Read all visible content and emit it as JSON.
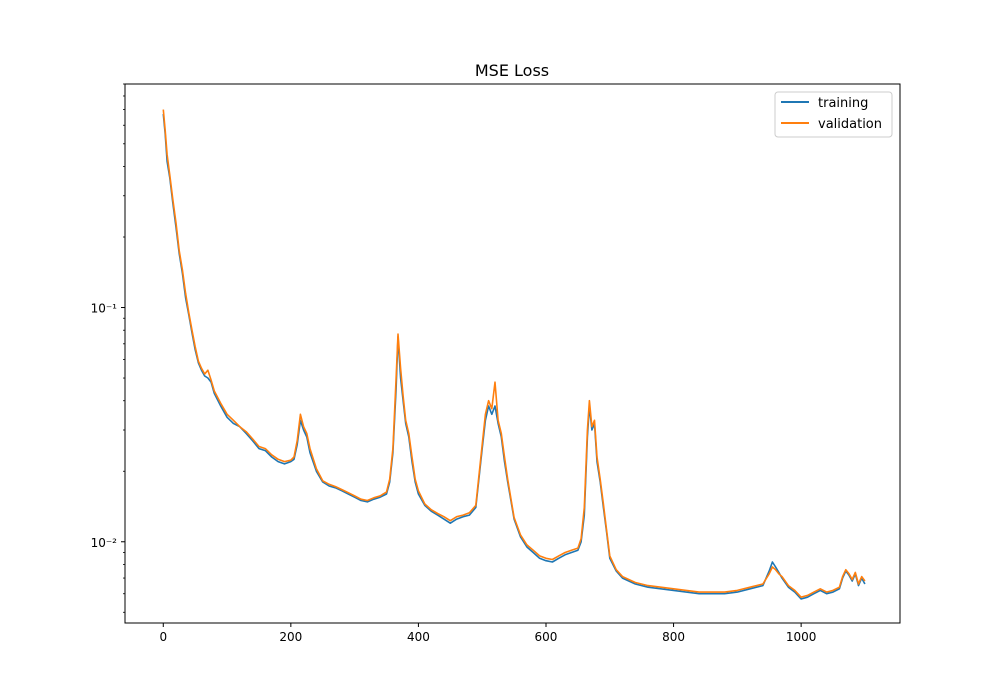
{
  "chart_data": {
    "type": "line",
    "title": "MSE Loss",
    "xlabel": "",
    "ylabel": "",
    "xlim": [
      -60,
      1155
    ],
    "ylim": [
      0.0045,
      0.9
    ],
    "yscale": "log",
    "grid": false,
    "legend_placement": "top-right",
    "x_ticks": [
      0,
      200,
      400,
      600,
      800,
      1000
    ],
    "x_tick_labels": [
      "0",
      "200",
      "400",
      "600",
      "800",
      "1000"
    ],
    "y_ticks": [
      0.01,
      0.1
    ],
    "y_tick_labels": [
      "10⁻²",
      "10⁻¹"
    ],
    "x": [
      0,
      3,
      6,
      10,
      15,
      20,
      25,
      30,
      35,
      40,
      45,
      50,
      55,
      60,
      65,
      70,
      75,
      80,
      90,
      100,
      110,
      120,
      130,
      140,
      150,
      160,
      170,
      180,
      190,
      200,
      205,
      210,
      215,
      220,
      225,
      230,
      240,
      250,
      260,
      270,
      280,
      290,
      300,
      310,
      320,
      330,
      340,
      350,
      355,
      360,
      365,
      368,
      372,
      376,
      380,
      385,
      390,
      395,
      400,
      410,
      420,
      430,
      440,
      450,
      460,
      470,
      480,
      490,
      500,
      505,
      510,
      515,
      520,
      525,
      530,
      535,
      540,
      545,
      550,
      560,
      570,
      580,
      590,
      600,
      610,
      620,
      630,
      640,
      650,
      655,
      660,
      665,
      668,
      672,
      676,
      680,
      685,
      690,
      695,
      700,
      710,
      720,
      740,
      760,
      780,
      800,
      820,
      840,
      860,
      880,
      900,
      920,
      940,
      950,
      955,
      960,
      965,
      970,
      980,
      990,
      1000,
      1010,
      1020,
      1030,
      1040,
      1050,
      1060,
      1065,
      1070,
      1075,
      1080,
      1085,
      1090,
      1095,
      1100
    ],
    "series": [
      {
        "name": "training",
        "color": "#1f77b4",
        "values": [
          0.67,
          0.55,
          0.42,
          0.36,
          0.28,
          0.22,
          0.17,
          0.14,
          0.11,
          0.093,
          0.078,
          0.066,
          0.058,
          0.054,
          0.051,
          0.05,
          0.048,
          0.043,
          0.038,
          0.034,
          0.032,
          0.031,
          0.029,
          0.027,
          0.025,
          0.0245,
          0.023,
          0.022,
          0.0215,
          0.022,
          0.0225,
          0.026,
          0.033,
          0.03,
          0.028,
          0.024,
          0.02,
          0.018,
          0.0173,
          0.017,
          0.0165,
          0.016,
          0.0155,
          0.015,
          0.0148,
          0.0152,
          0.0155,
          0.016,
          0.018,
          0.024,
          0.045,
          0.075,
          0.05,
          0.04,
          0.032,
          0.028,
          0.022,
          0.018,
          0.016,
          0.0143,
          0.0135,
          0.013,
          0.0125,
          0.012,
          0.0125,
          0.0128,
          0.013,
          0.014,
          0.025,
          0.033,
          0.038,
          0.035,
          0.038,
          0.032,
          0.028,
          0.022,
          0.018,
          0.015,
          0.0125,
          0.0105,
          0.0095,
          0.009,
          0.0085,
          0.0083,
          0.0082,
          0.0085,
          0.0088,
          0.009,
          0.0092,
          0.01,
          0.013,
          0.028,
          0.038,
          0.03,
          0.032,
          0.022,
          0.018,
          0.014,
          0.011,
          0.0085,
          0.0075,
          0.007,
          0.0066,
          0.0064,
          0.0063,
          0.0062,
          0.0061,
          0.006,
          0.006,
          0.006,
          0.0061,
          0.0063,
          0.0065,
          0.0075,
          0.0082,
          0.0078,
          0.0074,
          0.007,
          0.0064,
          0.0061,
          0.0057,
          0.0058,
          0.006,
          0.0062,
          0.006,
          0.0061,
          0.0063,
          0.007,
          0.0075,
          0.0072,
          0.0068,
          0.0073,
          0.0065,
          0.007,
          0.0066
        ]
      },
      {
        "name": "validation",
        "color": "#ff7f0e",
        "values": [
          0.7,
          0.57,
          0.45,
          0.37,
          0.29,
          0.23,
          0.175,
          0.145,
          0.115,
          0.095,
          0.08,
          0.068,
          0.059,
          0.055,
          0.052,
          0.054,
          0.049,
          0.044,
          0.039,
          0.035,
          0.033,
          0.031,
          0.0295,
          0.0275,
          0.0255,
          0.025,
          0.0235,
          0.0225,
          0.022,
          0.0223,
          0.023,
          0.027,
          0.035,
          0.031,
          0.029,
          0.025,
          0.0205,
          0.0182,
          0.0176,
          0.0172,
          0.0167,
          0.0162,
          0.0157,
          0.0152,
          0.015,
          0.0154,
          0.0157,
          0.0163,
          0.0185,
          0.025,
          0.05,
          0.077,
          0.055,
          0.042,
          0.033,
          0.029,
          0.023,
          0.0185,
          0.0165,
          0.0145,
          0.0137,
          0.0132,
          0.0128,
          0.0123,
          0.0128,
          0.013,
          0.0133,
          0.0143,
          0.026,
          0.035,
          0.04,
          0.037,
          0.048,
          0.033,
          0.029,
          0.023,
          0.0185,
          0.0153,
          0.0127,
          0.0107,
          0.0097,
          0.0092,
          0.0087,
          0.0085,
          0.0084,
          0.0087,
          0.009,
          0.0092,
          0.0094,
          0.0103,
          0.014,
          0.03,
          0.04,
          0.031,
          0.033,
          0.023,
          0.0185,
          0.0145,
          0.0112,
          0.0087,
          0.0076,
          0.0071,
          0.0067,
          0.0065,
          0.0064,
          0.0063,
          0.0062,
          0.0061,
          0.0061,
          0.0061,
          0.0062,
          0.0064,
          0.0066,
          0.0073,
          0.0078,
          0.0076,
          0.0073,
          0.0071,
          0.0065,
          0.0062,
          0.0058,
          0.0059,
          0.0061,
          0.0063,
          0.0061,
          0.0062,
          0.0064,
          0.0071,
          0.0076,
          0.0073,
          0.0069,
          0.0074,
          0.0066,
          0.0071,
          0.0068
        ]
      }
    ]
  }
}
